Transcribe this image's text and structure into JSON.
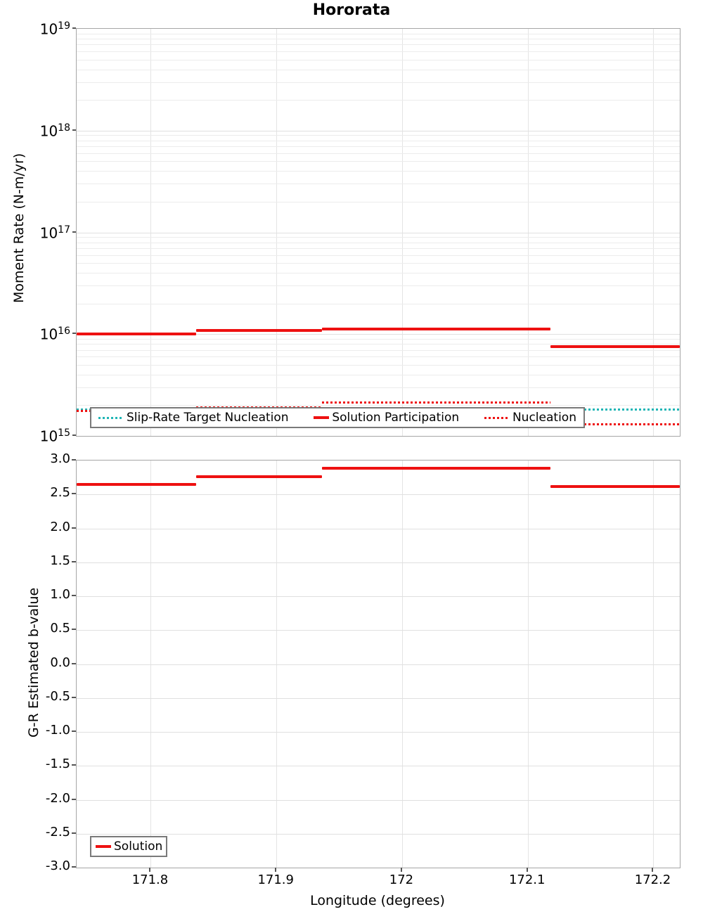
{
  "chart_data": [
    {
      "type": "line",
      "subtype": "step-segments",
      "title": "Hororata",
      "ylabel": "Moment Rate (N-m/yr)",
      "yscale": "log",
      "ylim": [
        1000000000000000.0,
        1e+19
      ],
      "ytick_exponents": [
        19,
        18,
        17,
        16,
        15
      ],
      "xlim": [
        171.741,
        172.221
      ],
      "xticks": [
        {
          "value": 171.8,
          "label": "171.8"
        },
        {
          "value": 171.9,
          "label": "171.9"
        },
        {
          "value": 172.0,
          "label": "172"
        },
        {
          "value": 172.1,
          "label": "172.1"
        },
        {
          "value": 172.2,
          "label": "172.2"
        }
      ],
      "grid": true,
      "legend_position": "lower center",
      "segments_x": [
        [
          171.741,
          171.836
        ],
        [
          171.836,
          171.936
        ],
        [
          171.936,
          172.118
        ],
        [
          172.118,
          172.221
        ]
      ],
      "series": [
        {
          "name": "Slip-Rate Target Nucleation",
          "style": "dotted",
          "color": "#1fb5b5",
          "values": [
            1800000000000000.0,
            1800000000000000.0,
            1800000000000000.0,
            1800000000000000.0
          ]
        },
        {
          "name": "Solution Participation",
          "style": "solid",
          "color": "#ee1111",
          "values": [
            1e+16,
            1.08e+16,
            1.13e+16,
            7500000000000000.0
          ]
        },
        {
          "name": "Nucleation",
          "style": "dotted",
          "color": "#ee1111",
          "values": [
            1750000000000000.0,
            1900000000000000.0,
            2100000000000000.0,
            1300000000000000.0
          ]
        }
      ]
    },
    {
      "type": "line",
      "subtype": "step-segments",
      "title": "",
      "ylabel": "G-R Estimated b-value",
      "xlabel": "Longitude (degrees)",
      "ylim": [
        -3.0,
        3.0
      ],
      "yticks": [
        {
          "value": 3.0,
          "label": "3.0"
        },
        {
          "value": 2.5,
          "label": "2.5"
        },
        {
          "value": 2.0,
          "label": "2.0"
        },
        {
          "value": 1.5,
          "label": "1.5"
        },
        {
          "value": 1.0,
          "label": "1.0"
        },
        {
          "value": 0.5,
          "label": "0.5"
        },
        {
          "value": 0.0,
          "label": "0.0"
        },
        {
          "value": -0.5,
          "label": "-0.5"
        },
        {
          "value": -1.0,
          "label": "-1.0"
        },
        {
          "value": -1.5,
          "label": "-1.5"
        },
        {
          "value": -2.0,
          "label": "-2.0"
        },
        {
          "value": -2.5,
          "label": "-2.5"
        },
        {
          "value": -3.0,
          "label": "-3.0"
        }
      ],
      "xlim": [
        171.741,
        172.221
      ],
      "xticks": [
        {
          "value": 171.8,
          "label": "171.8"
        },
        {
          "value": 171.9,
          "label": "171.9"
        },
        {
          "value": 172.0,
          "label": "172"
        },
        {
          "value": 172.1,
          "label": "172.1"
        },
        {
          "value": 172.2,
          "label": "172.2"
        }
      ],
      "grid": true,
      "legend_position": "lower left",
      "segments_x": [
        [
          171.741,
          171.836
        ],
        [
          171.836,
          171.936
        ],
        [
          171.936,
          172.118
        ],
        [
          172.118,
          172.221
        ]
      ],
      "series": [
        {
          "name": "Solution",
          "style": "solid",
          "color": "#ee1111",
          "values": [
            2.65,
            2.76,
            2.89,
            2.62
          ]
        }
      ]
    }
  ],
  "colors": {
    "solution_red": "#ee1111",
    "target_teal": "#1fb5b5",
    "grid_minor": "#ececec",
    "grid_major": "#e0e0e0",
    "spine": "#a6a6a6"
  }
}
